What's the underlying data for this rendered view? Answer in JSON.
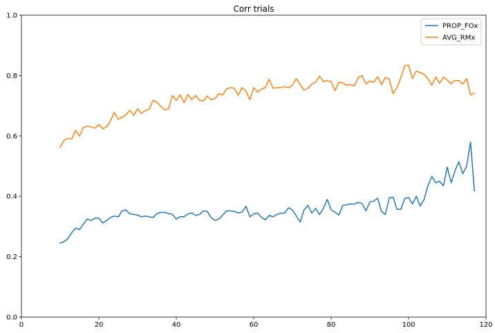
{
  "chart_data": {
    "type": "line",
    "title": "Corr trials",
    "xlabel": "",
    "ylabel": "",
    "xlim": [
      0,
      120
    ],
    "ylim": [
      0.0,
      1.0
    ],
    "xticks": [
      0,
      20,
      40,
      60,
      80,
      100,
      120
    ],
    "xtick_labels": [
      "0",
      "20",
      "40",
      "60",
      "80",
      "100",
      "120"
    ],
    "yticks": [
      0.0,
      0.2,
      0.4,
      0.6,
      0.8,
      1.0
    ],
    "ytick_labels": [
      "0.0",
      "0.2",
      "0.4",
      "0.6",
      "0.8",
      "1.0"
    ],
    "grid": false,
    "legend_position": "top-right",
    "x_start": 10,
    "series": [
      {
        "name": "PROP_FOx",
        "color": "#1f77b4",
        "values": [
          0.245,
          0.25,
          0.26,
          0.28,
          0.295,
          0.29,
          0.308,
          0.325,
          0.32,
          0.328,
          0.328,
          0.312,
          0.32,
          0.33,
          0.335,
          0.332,
          0.352,
          0.355,
          0.342,
          0.34,
          0.338,
          0.332,
          0.335,
          0.332,
          0.33,
          0.343,
          0.347,
          0.347,
          0.343,
          0.34,
          0.325,
          0.333,
          0.332,
          0.342,
          0.345,
          0.337,
          0.34,
          0.352,
          0.35,
          0.33,
          0.32,
          0.325,
          0.338,
          0.352,
          0.352,
          0.35,
          0.345,
          0.348,
          0.367,
          0.332,
          0.342,
          0.345,
          0.33,
          0.322,
          0.337,
          0.332,
          0.34,
          0.344,
          0.345,
          0.362,
          0.355,
          0.335,
          0.315,
          0.355,
          0.37,
          0.345,
          0.36,
          0.34,
          0.36,
          0.39,
          0.355,
          0.348,
          0.338,
          0.37,
          0.372,
          0.375,
          0.374,
          0.38,
          0.376,
          0.352,
          0.382,
          0.384,
          0.394,
          0.35,
          0.34,
          0.395,
          0.397,
          0.357,
          0.357,
          0.393,
          0.396,
          0.375,
          0.4,
          0.368,
          0.39,
          0.435,
          0.466,
          0.445,
          0.45,
          0.435,
          0.497,
          0.445,
          0.485,
          0.515,
          0.475,
          0.5,
          0.58,
          0.418
        ]
      },
      {
        "name": "AVG_RMx",
        "color": "#ff7f0e",
        "values": [
          0.563,
          0.585,
          0.592,
          0.59,
          0.618,
          0.6,
          0.628,
          0.632,
          0.63,
          0.626,
          0.638,
          0.624,
          0.63,
          0.65,
          0.678,
          0.655,
          0.662,
          0.67,
          0.685,
          0.668,
          0.69,
          0.675,
          0.684,
          0.688,
          0.718,
          0.712,
          0.698,
          0.686,
          0.69,
          0.734,
          0.718,
          0.736,
          0.71,
          0.738,
          0.72,
          0.734,
          0.718,
          0.716,
          0.732,
          0.72,
          0.724,
          0.74,
          0.736,
          0.756,
          0.76,
          0.758,
          0.735,
          0.76,
          0.748,
          0.72,
          0.76,
          0.745,
          0.755,
          0.76,
          0.788,
          0.758,
          0.76,
          0.76,
          0.763,
          0.76,
          0.768,
          0.79,
          0.77,
          0.752,
          0.758,
          0.772,
          0.778,
          0.798,
          0.78,
          0.783,
          0.78,
          0.75,
          0.778,
          0.776,
          0.768,
          0.77,
          0.766,
          0.793,
          0.8,
          0.772,
          0.782,
          0.778,
          0.796,
          0.77,
          0.794,
          0.788,
          0.74,
          0.76,
          0.793,
          0.832,
          0.835,
          0.79,
          0.815,
          0.81,
          0.804,
          0.79,
          0.768,
          0.795,
          0.775,
          0.795,
          0.785,
          0.773,
          0.784,
          0.783,
          0.772,
          0.79,
          0.736,
          0.742
        ]
      }
    ]
  }
}
